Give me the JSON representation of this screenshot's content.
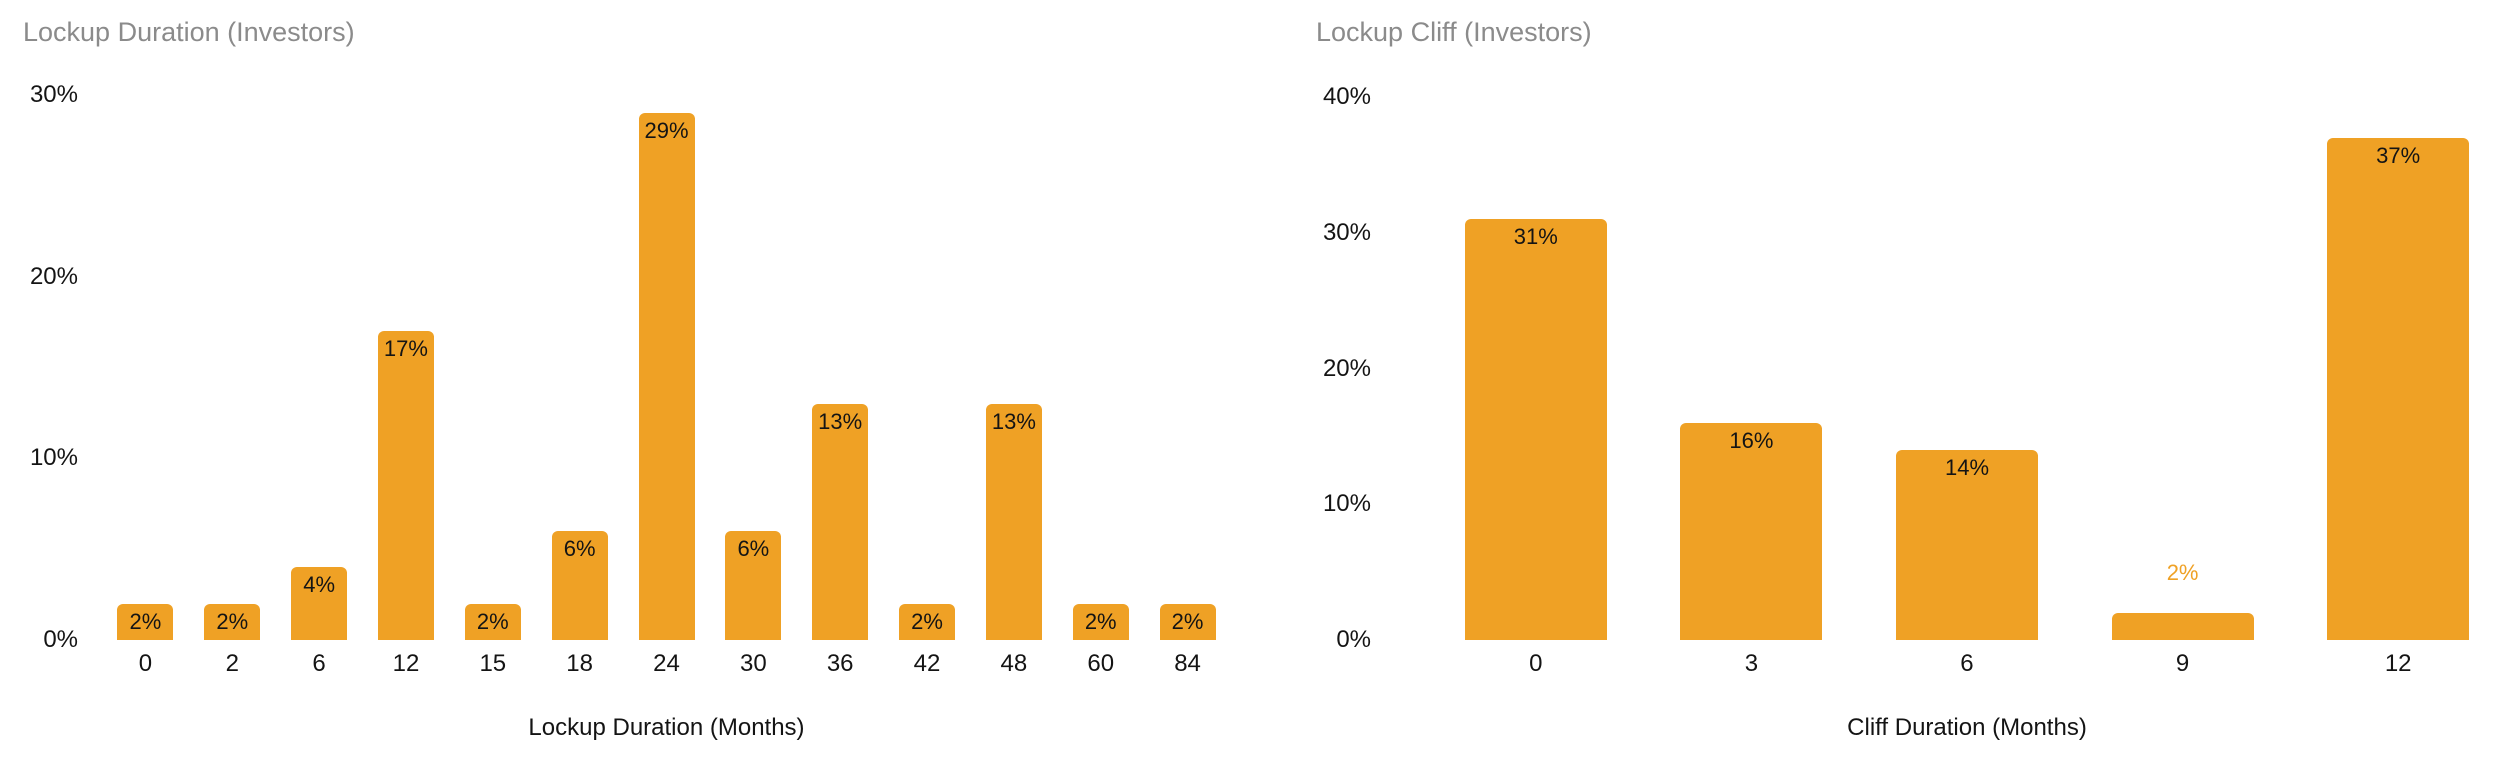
{
  "colors": {
    "bar": "#EFA125",
    "chart_title": "#8B8B8B",
    "text": "#141414",
    "background": "#FFFFFF",
    "outside_value_label": "#EFA125"
  },
  "chart_data": [
    {
      "type": "bar",
      "title": "Lockup Duration (Investors)",
      "xlabel": "Lockup Duration (Months)",
      "ylabel": "",
      "categories": [
        "0",
        "2",
        "6",
        "12",
        "15",
        "18",
        "24",
        "30",
        "36",
        "42",
        "48",
        "60",
        "84"
      ],
      "values": [
        2,
        2,
        4,
        17,
        2,
        6,
        29,
        6,
        13,
        2,
        13,
        2,
        2
      ],
      "value_labels": [
        "2%",
        "2%",
        "4%",
        "17%",
        "2%",
        "6%",
        "29%",
        "6%",
        "13%",
        "2%",
        "13%",
        "2%",
        "2%"
      ],
      "ylim": [
        0,
        30
      ],
      "ytick_values": [
        0,
        10,
        20,
        30
      ],
      "ytick_labels": [
        "0%",
        "10%",
        "20%",
        "30%"
      ],
      "grid": false,
      "legend": "none"
    },
    {
      "type": "bar",
      "title": "Lockup Cliff (Investors)",
      "xlabel": "Cliff Duration (Months)",
      "ylabel": "",
      "categories": [
        "0",
        "3",
        "6",
        "9",
        "12"
      ],
      "values": [
        31,
        16,
        14,
        2,
        37
      ],
      "value_labels": [
        "31%",
        "16%",
        "14%",
        "2%",
        "37%"
      ],
      "ylim": [
        0,
        40
      ],
      "ytick_values": [
        0,
        10,
        20,
        30,
        40
      ],
      "ytick_labels": [
        "0%",
        "10%",
        "20%",
        "30%",
        "40%"
      ],
      "grid": false,
      "legend": "none"
    }
  ]
}
